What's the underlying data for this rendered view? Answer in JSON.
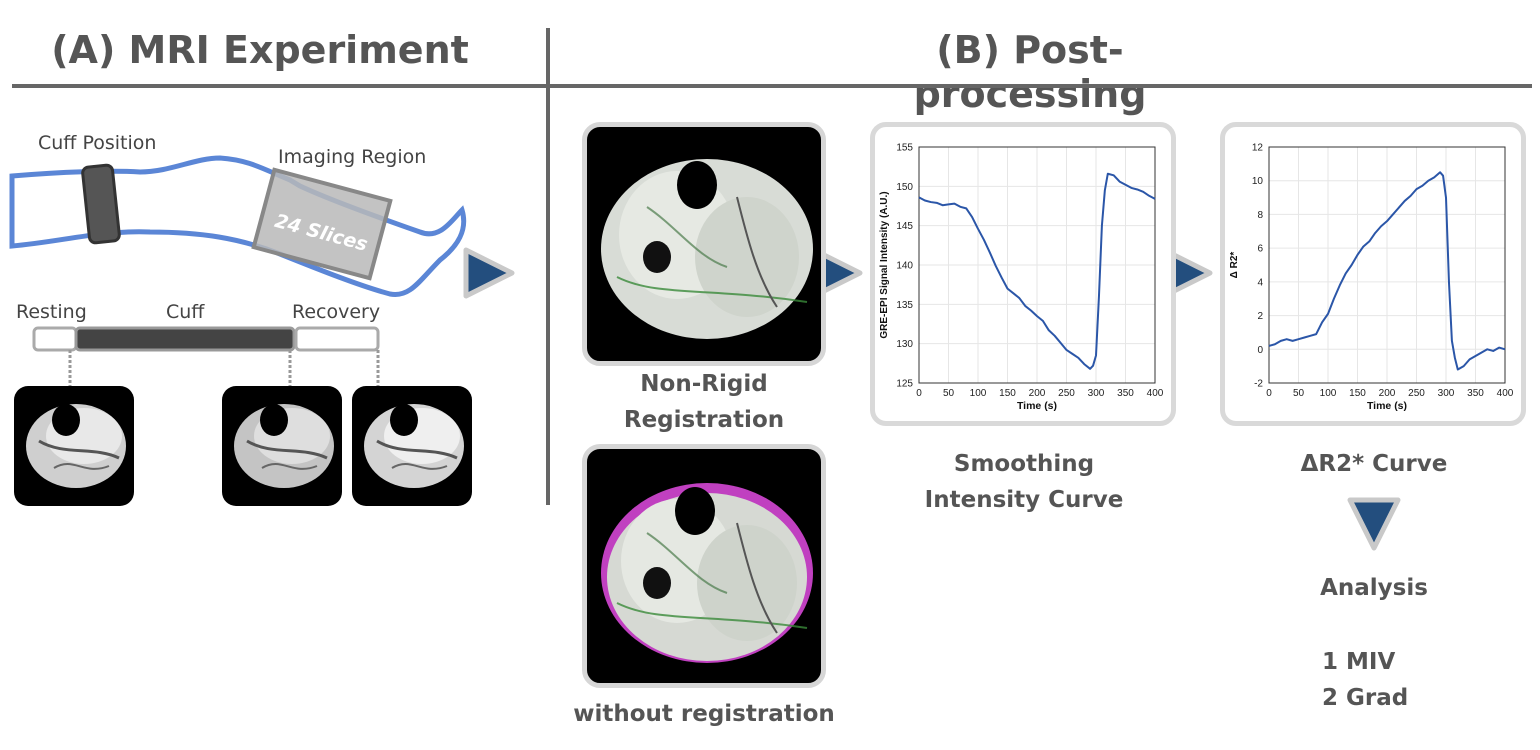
{
  "titles": {
    "a": "(A) MRI Experiment",
    "b": "(B) Post-processing"
  },
  "leg": {
    "cuff_position": "Cuff Position",
    "imaging_region": "Imaging Region",
    "slices": "24 Slices"
  },
  "timeline": {
    "resting": "Resting",
    "cuff": "Cuff",
    "recovery": "Recovery"
  },
  "registration": {
    "nonrigid_line1": "Non-Rigid",
    "nonrigid_line2": "Registration",
    "without": "without registration"
  },
  "captions": {
    "smoothing_line1": "Smoothing",
    "smoothing_line2": "Intensity Curve",
    "dr2": "ΔR2* Curve"
  },
  "analysis": {
    "title": "Analysis",
    "items": [
      "1 MIV",
      "2 Grad"
    ]
  },
  "colors": {
    "arrow": "#234e7e",
    "curve": "#2b56a8",
    "leg_outline": "#5b86d6",
    "frame": "#d6d6d6"
  },
  "chart_data": [
    {
      "type": "line",
      "title": "",
      "xlabel": "Time (s)",
      "ylabel": "GRE-EPI Signal Intensity (A.U.)",
      "xlim": [
        0,
        400
      ],
      "ylim": [
        125,
        155
      ],
      "xticks": [
        0,
        50,
        100,
        150,
        200,
        250,
        300,
        350,
        400
      ],
      "yticks": [
        125,
        130,
        135,
        140,
        145,
        150,
        155
      ],
      "x": [
        0,
        10,
        20,
        30,
        40,
        50,
        60,
        70,
        80,
        90,
        100,
        110,
        120,
        130,
        140,
        150,
        160,
        170,
        180,
        190,
        200,
        210,
        220,
        230,
        240,
        250,
        260,
        270,
        280,
        290,
        295,
        300,
        305,
        310,
        315,
        320,
        330,
        340,
        350,
        360,
        370,
        380,
        390,
        400
      ],
      "values": [
        148.6,
        148.2,
        148.0,
        147.9,
        147.6,
        147.7,
        147.8,
        147.4,
        147.2,
        146.1,
        144.6,
        143.2,
        141.6,
        139.9,
        138.4,
        137.0,
        136.4,
        135.8,
        134.8,
        134.2,
        133.5,
        132.9,
        131.7,
        131.0,
        130.1,
        129.2,
        128.7,
        128.2,
        127.4,
        126.8,
        127.2,
        128.5,
        136.0,
        145.0,
        149.5,
        151.6,
        151.4,
        150.6,
        150.2,
        149.8,
        149.6,
        149.3,
        148.8,
        148.4
      ],
      "grid": true
    },
    {
      "type": "line",
      "title": "",
      "xlabel": "Time (s)",
      "ylabel": "Δ R2*",
      "xlim": [
        0,
        400
      ],
      "ylim": [
        -2,
        12
      ],
      "xticks": [
        0,
        50,
        100,
        150,
        200,
        250,
        300,
        350,
        400
      ],
      "yticks": [
        -2,
        0,
        2,
        4,
        6,
        8,
        10,
        12
      ],
      "x": [
        0,
        10,
        20,
        30,
        40,
        50,
        60,
        70,
        80,
        90,
        100,
        110,
        120,
        130,
        140,
        150,
        160,
        170,
        180,
        190,
        200,
        210,
        220,
        230,
        240,
        250,
        260,
        270,
        280,
        290,
        295,
        300,
        305,
        310,
        315,
        320,
        330,
        340,
        350,
        360,
        370,
        380,
        390,
        400
      ],
      "values": [
        0.2,
        0.3,
        0.5,
        0.6,
        0.5,
        0.6,
        0.7,
        0.8,
        0.9,
        1.6,
        2.1,
        3.0,
        3.8,
        4.5,
        5.0,
        5.6,
        6.1,
        6.4,
        6.9,
        7.3,
        7.6,
        8.0,
        8.4,
        8.8,
        9.1,
        9.5,
        9.7,
        10.0,
        10.2,
        10.5,
        10.3,
        9.0,
        4.0,
        0.5,
        -0.5,
        -1.2,
        -1.0,
        -0.6,
        -0.4,
        -0.2,
        0.0,
        -0.1,
        0.1,
        0.0
      ],
      "grid": true
    }
  ]
}
